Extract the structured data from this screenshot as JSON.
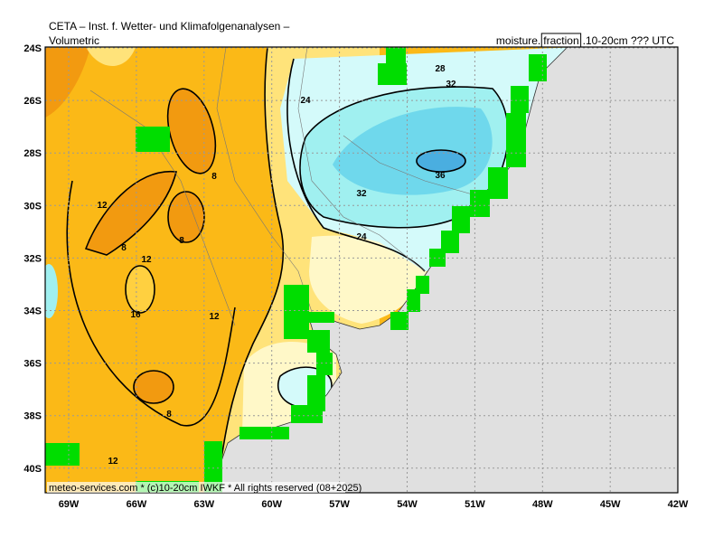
{
  "header": {
    "title": "CETA – Inst. f. Wetter- und Klimafolgenanalysen –",
    "left_label": "Volumetric",
    "right_label_prefix": "moisture.",
    "right_label_boxed": "fraction",
    "right_label_suffix": ".10-20cm ??? UTC"
  },
  "map": {
    "latitude_labels": [
      "24S",
      "26S",
      "28S",
      "30S",
      "32S",
      "34S",
      "36S",
      "38S",
      "40S"
    ],
    "longitude_labels": [
      "69W",
      "66W",
      "63W",
      "60W",
      "57W",
      "54W",
      "51W",
      "48W",
      "45W",
      "42W"
    ],
    "contour_labels": [
      "28",
      "32",
      "24",
      "36",
      "32",
      "24",
      "8",
      "12",
      "8",
      "8",
      "12",
      "16",
      "12",
      "8",
      "12"
    ]
  },
  "footer": "meteo-services.com * (c)10-20cm IWKF * All rights reserved (08+2025)"
}
